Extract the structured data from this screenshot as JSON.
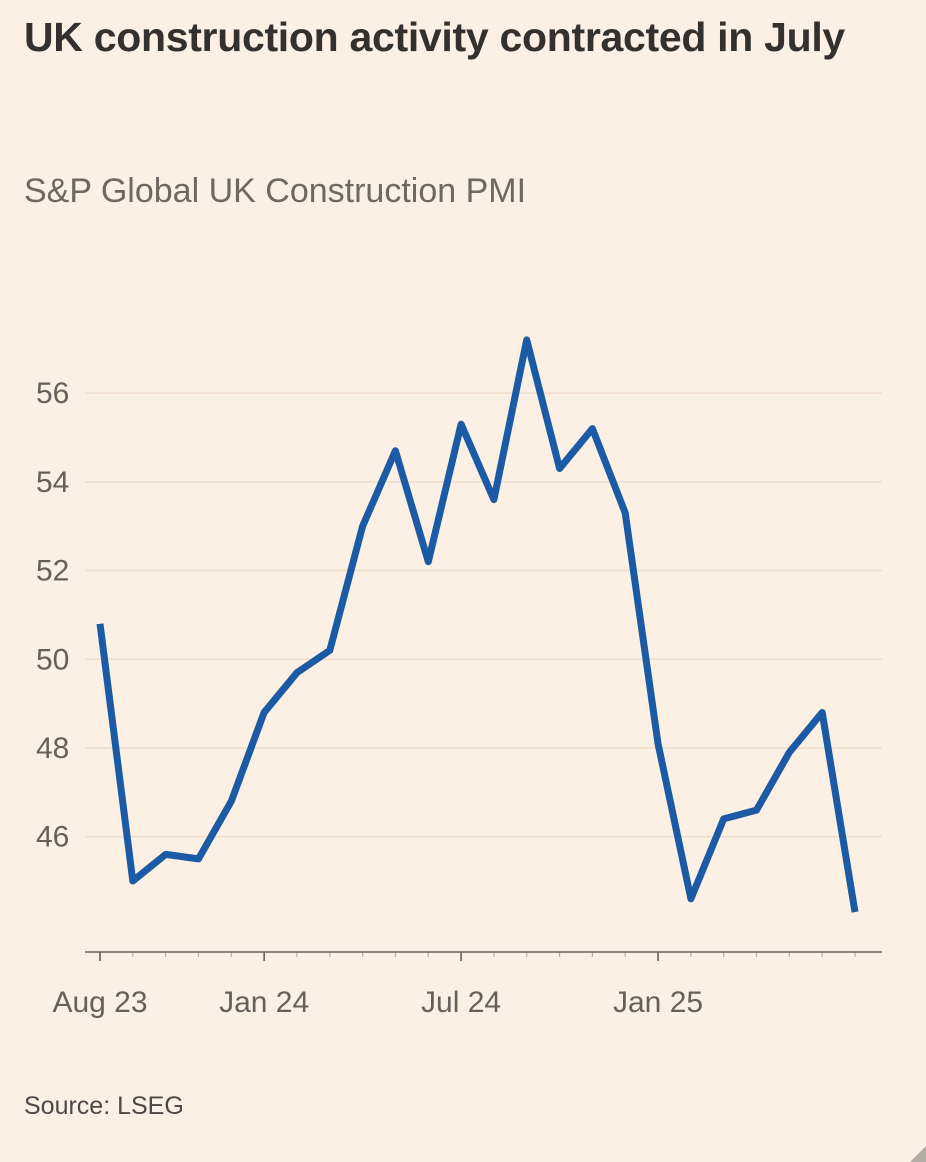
{
  "header": {
    "title": "UK construction activity contracted in July",
    "subtitle": "S&P Global UK Construction PMI"
  },
  "footer": {
    "source": "Source: LSEG"
  },
  "colors": {
    "background": "#fcf0e4",
    "title_text": "#33302e",
    "muted_text": "#6f6861",
    "axis_text": "#66605b",
    "gridline": "#f0ddcc",
    "axis_line": "#66605b",
    "line": "#1b5aa5",
    "corner_handle": "#b3aca3"
  },
  "chart_data": {
    "type": "line",
    "title": "UK construction activity contracted in July",
    "subtitle": "S&P Global UK Construction PMI",
    "source": "Source: LSEG",
    "series_name": "S&P Global UK Construction PMI",
    "categories": [
      "Aug 23",
      "Sep 23",
      "Oct 23",
      "Nov 23",
      "Dec 23",
      "Jan 24",
      "Feb 24",
      "Mar 24",
      "Apr 24",
      "May 24",
      "Jun 24",
      "Jul 24",
      "Aug 24",
      "Sep 24",
      "Oct 24",
      "Nov 24",
      "Dec 24",
      "Jan 25",
      "Feb 25",
      "Mar 25",
      "Apr 25",
      "May 25",
      "Jun 25",
      "Jul 25"
    ],
    "values": [
      50.8,
      45.0,
      45.6,
      45.5,
      46.8,
      48.8,
      49.7,
      50.2,
      53.0,
      54.7,
      52.2,
      55.3,
      53.6,
      57.2,
      54.3,
      55.2,
      53.3,
      48.1,
      44.6,
      46.4,
      46.6,
      47.9,
      48.8,
      44.3
    ],
    "ylim": [
      43.4,
      58.1
    ],
    "yticks": [
      46,
      48,
      50,
      52,
      54,
      56
    ],
    "xticks": [
      {
        "label": "Aug 23",
        "index": 0
      },
      {
        "label": "Jan 24",
        "index": 5
      },
      {
        "label": "Jul 24",
        "index": 11
      },
      {
        "label": "Jan 25",
        "index": 17
      }
    ],
    "grid": "horizontal",
    "legend": "none",
    "line_color": "#1b5aa5",
    "line_width": 7
  }
}
